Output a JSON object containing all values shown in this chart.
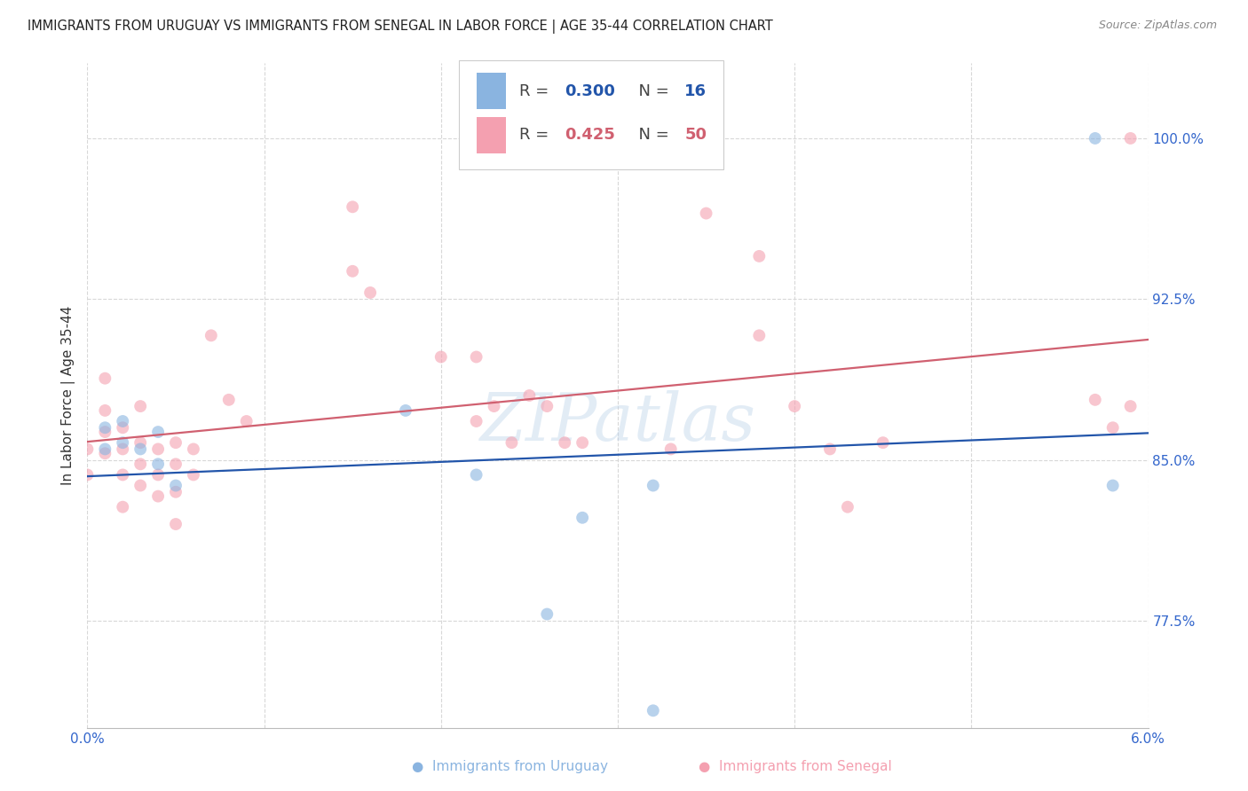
{
  "title": "IMMIGRANTS FROM URUGUAY VS IMMIGRANTS FROM SENEGAL IN LABOR FORCE | AGE 35-44 CORRELATION CHART",
  "source": "Source: ZipAtlas.com",
  "ylabel": "In Labor Force | Age 35-44",
  "xlim": [
    0.0,
    0.06
  ],
  "ylim": [
    0.725,
    1.035
  ],
  "xticks": [
    0.0,
    0.01,
    0.02,
    0.03,
    0.04,
    0.05,
    0.06
  ],
  "yticks": [
    0.775,
    0.85,
    0.925,
    1.0
  ],
  "ytick_labels": [
    "77.5%",
    "85.0%",
    "92.5%",
    "100.0%"
  ],
  "xtick_labels": [
    "0.0%",
    "",
    "",
    "",
    "",
    "",
    "6.0%"
  ],
  "watermark": "ZIPatlas",
  "legend_entries": [
    {
      "label": "Immigrants from Uruguay",
      "R": 0.3,
      "N": 16,
      "color": "#8ab4e0"
    },
    {
      "label": "Immigrants from Senegal",
      "R": 0.425,
      "N": 50,
      "color": "#f4a0b0"
    }
  ],
  "uruguay_x": [
    0.001,
    0.001,
    0.002,
    0.002,
    0.003,
    0.004,
    0.004,
    0.005,
    0.018,
    0.022,
    0.028,
    0.032,
    0.026,
    0.057,
    0.058,
    0.032
  ],
  "uruguay_y": [
    0.865,
    0.855,
    0.858,
    0.868,
    0.855,
    0.863,
    0.848,
    0.838,
    0.873,
    0.843,
    0.823,
    0.838,
    0.778,
    1.0,
    0.838,
    0.733
  ],
  "senegal_x": [
    0.0,
    0.0,
    0.001,
    0.001,
    0.001,
    0.001,
    0.002,
    0.002,
    0.002,
    0.002,
    0.003,
    0.003,
    0.003,
    0.003,
    0.004,
    0.004,
    0.004,
    0.005,
    0.005,
    0.005,
    0.005,
    0.006,
    0.006,
    0.007,
    0.008,
    0.009,
    0.015,
    0.015,
    0.016,
    0.02,
    0.022,
    0.022,
    0.023,
    0.024,
    0.025,
    0.026,
    0.027,
    0.028,
    0.033,
    0.035,
    0.038,
    0.038,
    0.04,
    0.042,
    0.043,
    0.045,
    0.057,
    0.058,
    0.059,
    0.059
  ],
  "senegal_y": [
    0.855,
    0.843,
    0.863,
    0.853,
    0.873,
    0.888,
    0.855,
    0.865,
    0.843,
    0.828,
    0.858,
    0.848,
    0.838,
    0.875,
    0.855,
    0.843,
    0.833,
    0.858,
    0.848,
    0.835,
    0.82,
    0.855,
    0.843,
    0.908,
    0.878,
    0.868,
    0.968,
    0.938,
    0.928,
    0.898,
    0.898,
    0.868,
    0.875,
    0.858,
    0.88,
    0.875,
    0.858,
    0.858,
    0.855,
    0.965,
    0.945,
    0.908,
    0.875,
    0.855,
    0.828,
    0.858,
    0.878,
    0.865,
    1.0,
    0.875
  ],
  "grid_color": "#d8d8d8",
  "background_color": "#ffffff",
  "blue_line_color": "#2255aa",
  "pink_line_color": "#d06070",
  "title_color": "#222222",
  "tick_label_color": "#3366cc",
  "dot_size": 100,
  "dot_alpha": 0.6,
  "line_width": 1.6
}
